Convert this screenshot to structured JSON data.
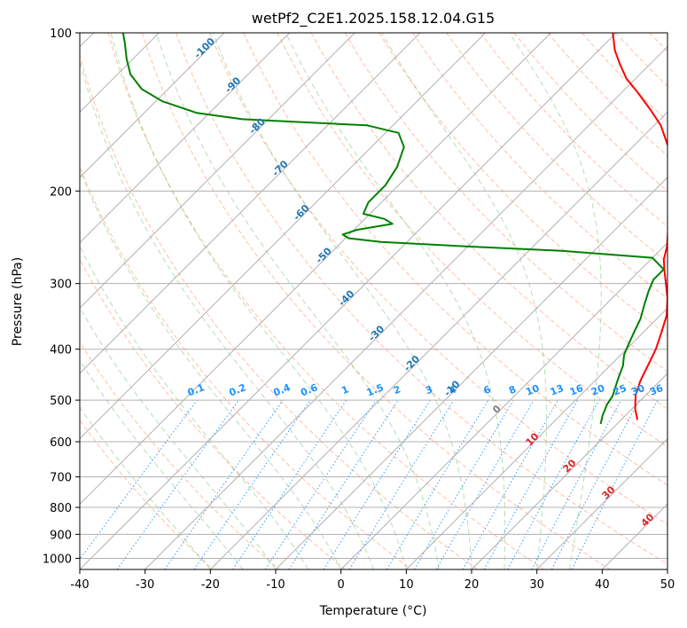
{
  "chart_data": {
    "type": "line",
    "title": "wetPf2_C2E1.2025.158.12.04.G15",
    "xlabel": "Temperature (°C)",
    "ylabel": "Pressure (hPa)",
    "xlim": [
      -40,
      50
    ],
    "ylim": [
      1050,
      100
    ],
    "y_scale": "log",
    "skew": true,
    "grid": true,
    "x_ticks": [
      -40,
      -30,
      -20,
      -10,
      0,
      10,
      20,
      30,
      40,
      50
    ],
    "y_ticks": [
      100,
      200,
      300,
      400,
      500,
      600,
      700,
      800,
      900,
      1000
    ],
    "series": [
      {
        "color": "#ff0000",
        "points": [
          {
            "p": 545,
            "t": 22.5
          },
          {
            "p": 520,
            "t": 20.5
          },
          {
            "p": 490,
            "t": 18.5
          },
          {
            "p": 460,
            "t": 17.0
          },
          {
            "p": 430,
            "t": 15.8
          },
          {
            "p": 400,
            "t": 14.5
          },
          {
            "p": 375,
            "t": 13.0
          },
          {
            "p": 345,
            "t": 11.0
          },
          {
            "p": 320,
            "t": 8.5
          },
          {
            "p": 300,
            "t": 6.0
          },
          {
            "p": 285,
            "t": 4.0
          },
          {
            "p": 270,
            "t": 2.0
          },
          {
            "p": 255,
            "t": 0.5
          },
          {
            "p": 240,
            "t": -1.5
          },
          {
            "p": 225,
            "t": -3.5
          },
          {
            "p": 210,
            "t": -5.5
          },
          {
            "p": 195,
            "t": -8.0
          },
          {
            "p": 180,
            "t": -11.0
          },
          {
            "p": 165,
            "t": -14.5
          },
          {
            "p": 150,
            "t": -19.0
          },
          {
            "p": 140,
            "t": -23.0
          },
          {
            "p": 130,
            "t": -27.5
          },
          {
            "p": 122,
            "t": -31.5
          },
          {
            "p": 115,
            "t": -34.5
          },
          {
            "p": 108,
            "t": -37.5
          },
          {
            "p": 100,
            "t": -40.5
          }
        ]
      },
      {
        "color": "#008000",
        "points": [
          {
            "p": 555,
            "t": 17.5
          },
          {
            "p": 535,
            "t": 16.5
          },
          {
            "p": 510,
            "t": 15.5
          },
          {
            "p": 490,
            "t": 15.0
          },
          {
            "p": 470,
            "t": 14.0
          },
          {
            "p": 450,
            "t": 13.0
          },
          {
            "p": 430,
            "t": 12.0
          },
          {
            "p": 410,
            "t": 10.5
          },
          {
            "p": 390,
            "t": 9.5
          },
          {
            "p": 370,
            "t": 8.5
          },
          {
            "p": 350,
            "t": 7.5
          },
          {
            "p": 330,
            "t": 6.0
          },
          {
            "p": 310,
            "t": 4.5
          },
          {
            "p": 295,
            "t": 3.5
          },
          {
            "p": 282,
            "t": 3.5
          },
          {
            "p": 268,
            "t": 0.0
          },
          {
            "p": 260,
            "t": -15.0
          },
          {
            "p": 255,
            "t": -30.0
          },
          {
            "p": 250,
            "t": -44.0
          },
          {
            "p": 246,
            "t": -49.5
          },
          {
            "p": 242,
            "t": -51.0
          },
          {
            "p": 237,
            "t": -49.5
          },
          {
            "p": 231,
            "t": -45.0
          },
          {
            "p": 226,
            "t": -47.0
          },
          {
            "p": 221,
            "t": -51.0
          },
          {
            "p": 210,
            "t": -52.0
          },
          {
            "p": 195,
            "t": -52.0
          },
          {
            "p": 180,
            "t": -53.0
          },
          {
            "p": 165,
            "t": -55.0
          },
          {
            "p": 155,
            "t": -58.0
          },
          {
            "p": 150,
            "t": -64.0
          },
          {
            "p": 148,
            "t": -74.0
          },
          {
            "p": 146,
            "t": -84.0
          },
          {
            "p": 142,
            "t": -92.0
          },
          {
            "p": 135,
            "t": -99.0
          },
          {
            "p": 128,
            "t": -104.0
          },
          {
            "p": 120,
            "t": -108.0
          },
          {
            "p": 112,
            "t": -111.0
          },
          {
            "p": 105,
            "t": -113.5
          },
          {
            "p": 100,
            "t": -115.5
          }
        ]
      }
    ],
    "temperature_labels": [
      "-100",
      "-90",
      "-80",
      "-70",
      "-60",
      "-50",
      "-40",
      "-30",
      "-20",
      "-10"
    ],
    "mixing_ratio_labels": [
      "0.1",
      "0.2",
      "0.4",
      "0.6",
      "1",
      "1.5",
      "2",
      "3",
      "4",
      "6",
      "8",
      "10",
      "13",
      "16",
      "20",
      "25",
      "30",
      "36"
    ],
    "theta_e_labels": [
      "0",
      "10",
      "20",
      "30",
      "40"
    ],
    "colors": {
      "temperature": "#ff0000",
      "dewpoint": "#008000",
      "isotherm_labels": "#1f77b4",
      "mixing_ratio": "#1e90ff",
      "theta_e_labels": "#d62728",
      "zero_label": "#808080",
      "dry_adiabat": "#ff7f50",
      "moist_adiabat": "#2ca02c",
      "grid": "#b0b0b0"
    }
  }
}
